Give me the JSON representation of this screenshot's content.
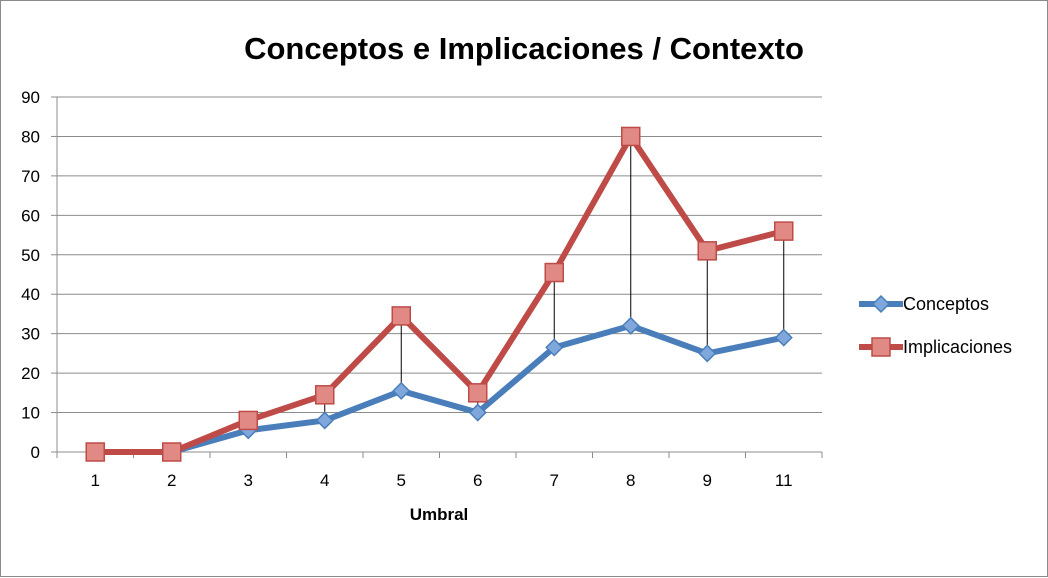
{
  "chart_data": {
    "type": "line",
    "title": "Conceptos e Implicaciones / Contexto",
    "xlabel": "Umbral",
    "ylabel": "",
    "categories": [
      "1",
      "2",
      "3",
      "4",
      "5",
      "6",
      "7",
      "8",
      "9",
      "11"
    ],
    "ylim": [
      0,
      90
    ],
    "yticks": [
      0,
      10,
      20,
      30,
      40,
      50,
      60,
      70,
      80,
      90
    ],
    "grid": true,
    "legend_position": "right",
    "drop_lines": true,
    "series": [
      {
        "name": "Conceptos",
        "values": [
          0,
          0,
          5.5,
          8,
          15.5,
          10,
          26.5,
          32,
          25,
          29
        ],
        "color": "#4a7ebb",
        "marker": "diamond"
      },
      {
        "name": "Implicaciones",
        "values": [
          0,
          0,
          8,
          14.5,
          34.5,
          15,
          45.5,
          80,
          51,
          56
        ],
        "color": "#be4b48",
        "marker": "square"
      }
    ]
  }
}
